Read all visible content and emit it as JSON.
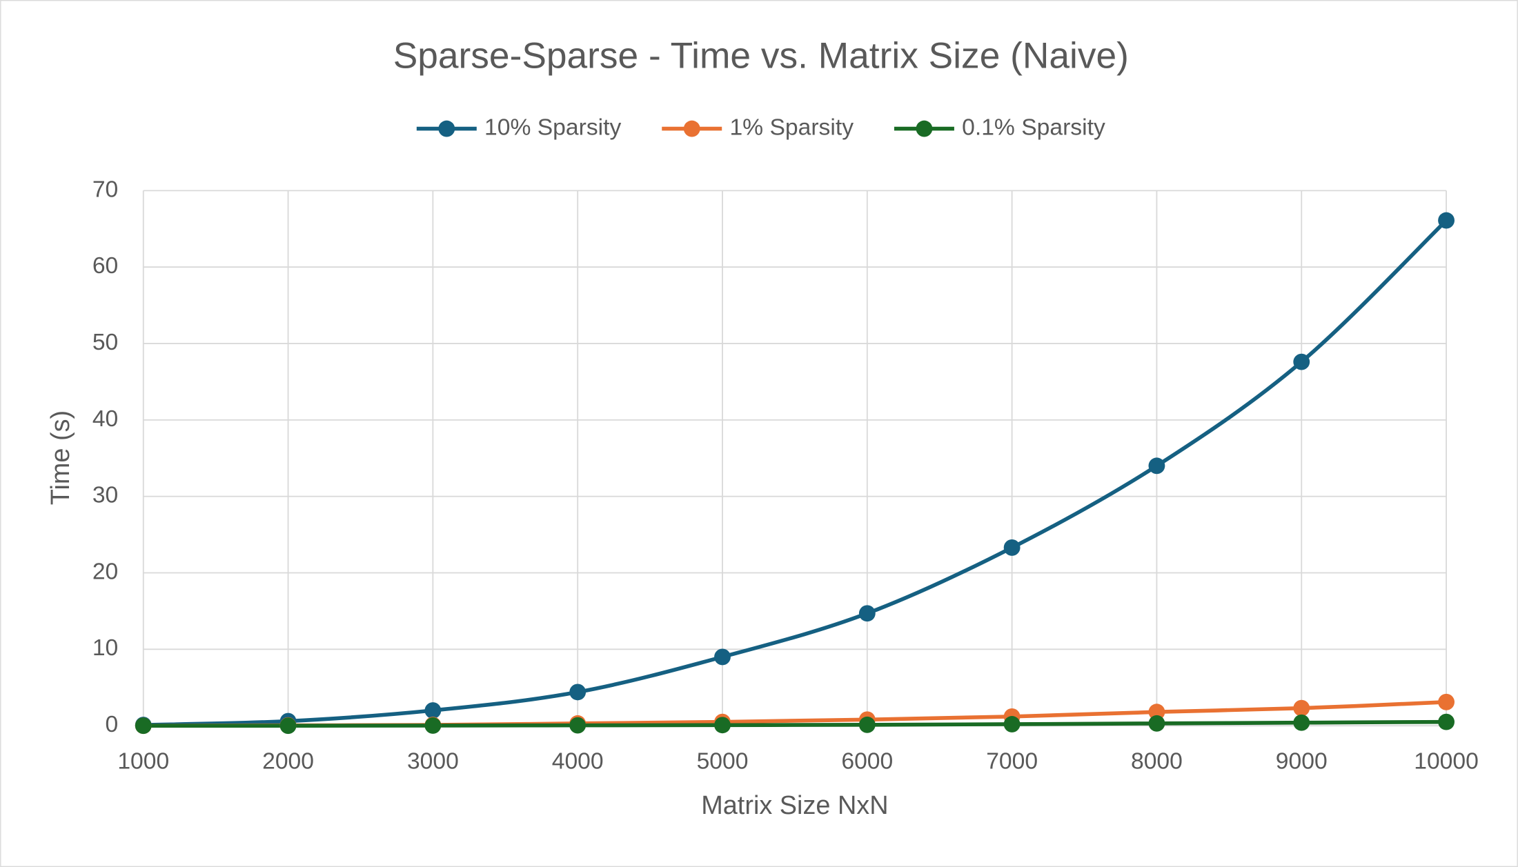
{
  "chart_data": {
    "type": "line",
    "title": "Sparse-Sparse - Time vs. Matrix Size (Naive)",
    "x_label": "Matrix Size NxN",
    "y_label": "Time (s)",
    "x": [
      1000,
      2000,
      3000,
      4000,
      5000,
      6000,
      7000,
      8000,
      9000,
      10000
    ],
    "series": [
      {
        "name": "10% Sparsity",
        "color": "#156082",
        "values": [
          0.1,
          0.6,
          2.0,
          4.4,
          9.0,
          14.7,
          23.3,
          34.0,
          47.6,
          66.1
        ]
      },
      {
        "name": "1% Sparsity",
        "color": "#e97132",
        "values": [
          0,
          0.05,
          0.1,
          0.3,
          0.5,
          0.8,
          1.2,
          1.8,
          2.3,
          3.1
        ]
      },
      {
        "name": "0.1% Sparsity",
        "color": "#196b24",
        "values": [
          0,
          0,
          0.02,
          0.05,
          0.08,
          0.12,
          0.2,
          0.3,
          0.4,
          0.5
        ]
      }
    ],
    "xlim": [
      1000,
      10000
    ],
    "xticks": [
      1000,
      2000,
      3000,
      4000,
      5000,
      6000,
      7000,
      8000,
      9000,
      10000
    ],
    "ylim": [
      0,
      70
    ],
    "yticks": [
      0,
      10,
      20,
      30,
      40,
      50,
      60,
      70
    ],
    "grid": true,
    "legend": "top",
    "smooth": true
  }
}
